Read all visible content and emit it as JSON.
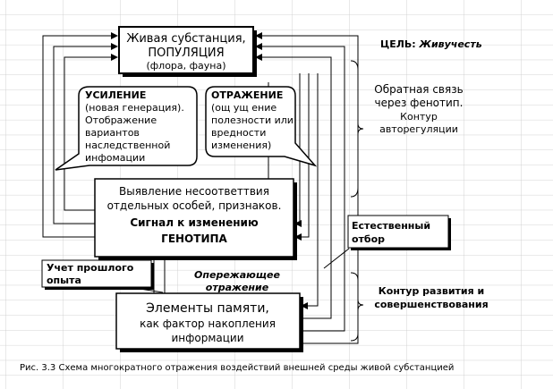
{
  "goal": {
    "label": "ЦЕЛЬ:",
    "value": "Живучесть"
  },
  "population": [
    "Живая субстанция,",
    "ПОПУЛЯЦИЯ",
    "(флора, фауна)"
  ],
  "amplification": [
    "УСИЛЕНИЕ",
    "(новая генерация).",
    "Отображение",
    "вариантов",
    "наследственной",
    "инфомации"
  ],
  "reflection": [
    "ОТРАЖЕНИЕ",
    "(ощ ущ ение",
    "полезности или",
    "вредности",
    "изменения)"
  ],
  "feedback": [
    "Обратная связь",
    "через фенотип.",
    "Контур",
    "авторегуляции"
  ],
  "detection": [
    "Выявление несоответтвия",
    "отдельных особей, признаков.",
    "Сигнал к изменению",
    "ГЕНОТИПА"
  ],
  "selection": [
    "Естественный",
    "отбор"
  ],
  "experience": [
    "Учет прошлого",
    "опыта"
  ],
  "anticipation": [
    "Опережающее",
    "отражение"
  ],
  "development": [
    "Контур развития и",
    "совершенствования"
  ],
  "memory": [
    "Элементы памяти,",
    "как фактор накопления",
    "информации"
  ],
  "caption": "Рис. 3.3  Схема многократного отражения воздействий внешней среды живой субстанцией"
}
